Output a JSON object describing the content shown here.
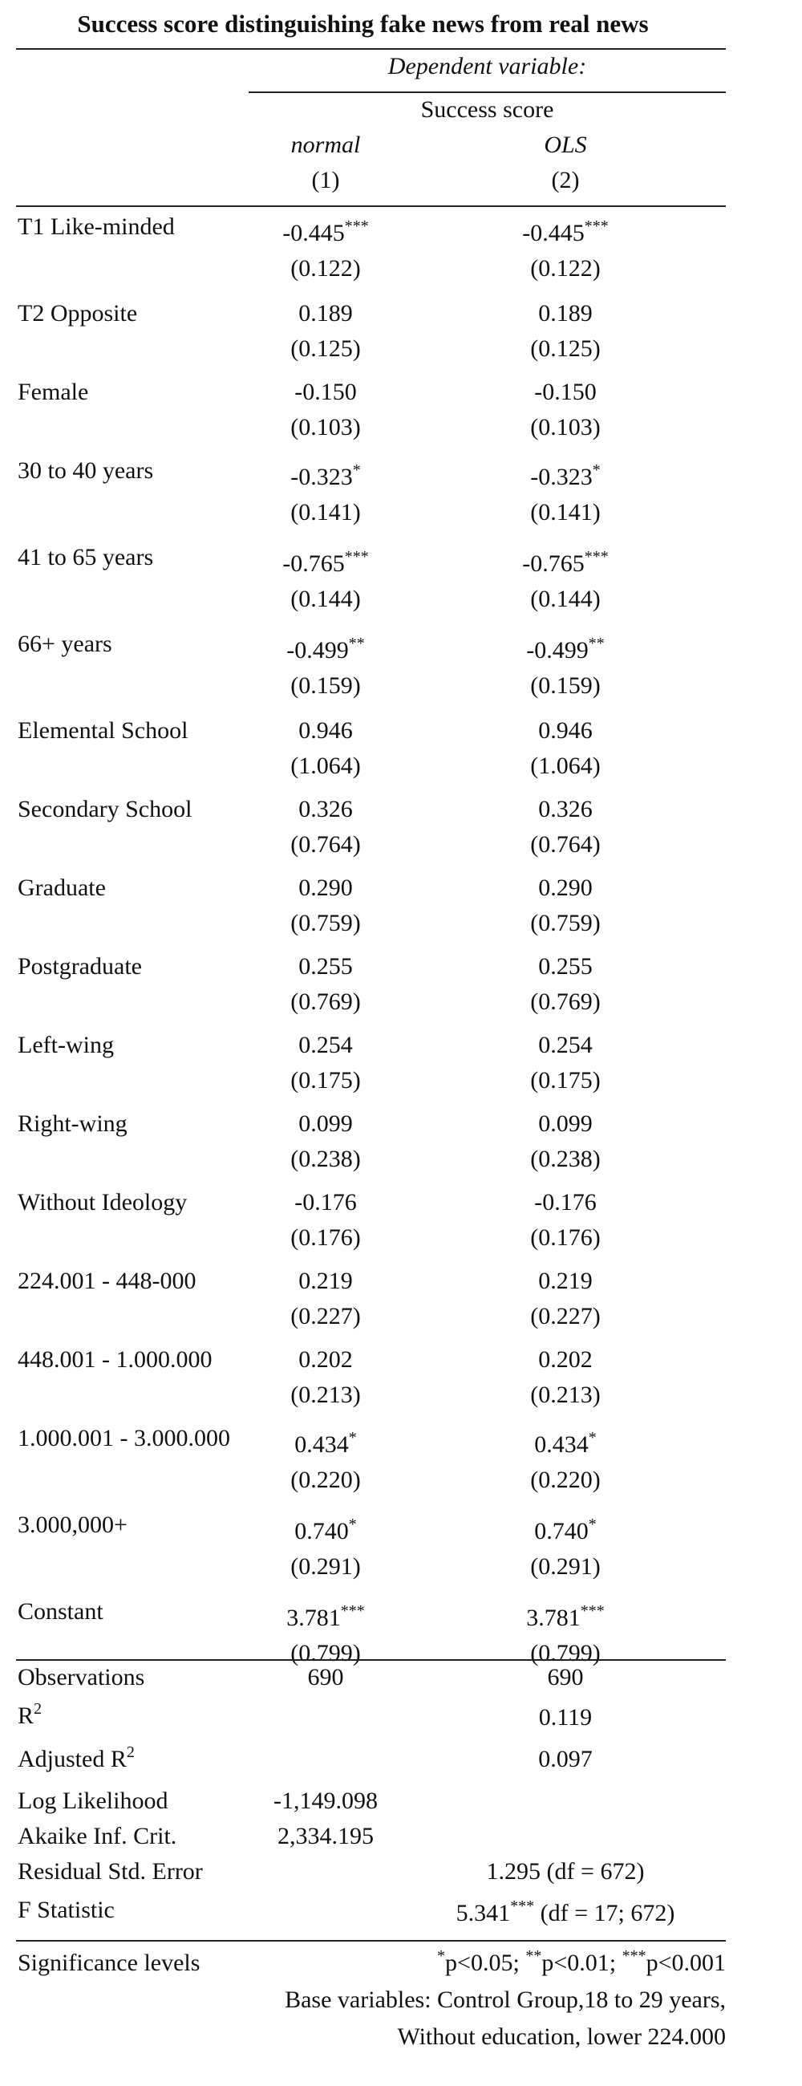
{
  "title": "Success score distinguishing fake news from real news",
  "header": {
    "dependent_label": "Dependent variable:",
    "dependent_name": "Success score",
    "models": [
      {
        "type": "normal",
        "number": "(1)"
      },
      {
        "type": "OLS",
        "number": "(2)"
      }
    ]
  },
  "rows": [
    {
      "label": "T1 Like-minded",
      "m1": "-0.445",
      "m1_sig": "***",
      "m1_se": "(0.122)",
      "m2": "-0.445",
      "m2_sig": "***",
      "m2_se": "(0.122)"
    },
    {
      "label": "T2 Opposite",
      "m1": "0.189",
      "m1_sig": "",
      "m1_se": "(0.125)",
      "m2": "0.189",
      "m2_sig": "",
      "m2_se": "(0.125)"
    },
    {
      "label": "Female",
      "m1": "-0.150",
      "m1_sig": "",
      "m1_se": "(0.103)",
      "m2": "-0.150",
      "m2_sig": "",
      "m2_se": "(0.103)"
    },
    {
      "label": "30 to 40 years",
      "m1": "-0.323",
      "m1_sig": "*",
      "m1_se": "(0.141)",
      "m2": "-0.323",
      "m2_sig": "*",
      "m2_se": "(0.141)"
    },
    {
      "label": "41 to 65 years",
      "m1": "-0.765",
      "m1_sig": "***",
      "m1_se": "(0.144)",
      "m2": "-0.765",
      "m2_sig": "***",
      "m2_se": "(0.144)"
    },
    {
      "label": "66+ years",
      "m1": "-0.499",
      "m1_sig": "**",
      "m1_se": "(0.159)",
      "m2": "-0.499",
      "m2_sig": "**",
      "m2_se": "(0.159)"
    },
    {
      "label": "Elemental School",
      "m1": "0.946",
      "m1_sig": "",
      "m1_se": "(1.064)",
      "m2": "0.946",
      "m2_sig": "",
      "m2_se": "(1.064)"
    },
    {
      "label": "Secondary School",
      "m1": "0.326",
      "m1_sig": "",
      "m1_se": "(0.764)",
      "m2": "0.326",
      "m2_sig": "",
      "m2_se": "(0.764)"
    },
    {
      "label": "Graduate",
      "m1": "0.290",
      "m1_sig": "",
      "m1_se": "(0.759)",
      "m2": "0.290",
      "m2_sig": "",
      "m2_se": "(0.759)"
    },
    {
      "label": "Postgraduate",
      "m1": "0.255",
      "m1_sig": "",
      "m1_se": "(0.769)",
      "m2": "0.255",
      "m2_sig": "",
      "m2_se": "(0.769)"
    },
    {
      "label": "Left-wing",
      "m1": "0.254",
      "m1_sig": "",
      "m1_se": "(0.175)",
      "m2": "0.254",
      "m2_sig": "",
      "m2_se": "(0.175)"
    },
    {
      "label": "Right-wing",
      "m1": "0.099",
      "m1_sig": "",
      "m1_se": "(0.238)",
      "m2": "0.099",
      "m2_sig": "",
      "m2_se": "(0.238)"
    },
    {
      "label": "Without Ideology",
      "m1": "-0.176",
      "m1_sig": "",
      "m1_se": "(0.176)",
      "m2": "-0.176",
      "m2_sig": "",
      "m2_se": "(0.176)"
    },
    {
      "label": "224.001 - 448-000",
      "m1": "0.219",
      "m1_sig": "",
      "m1_se": "(0.227)",
      "m2": "0.219",
      "m2_sig": "",
      "m2_se": "(0.227)"
    },
    {
      "label": "448.001 - 1.000.000",
      "m1": "0.202",
      "m1_sig": "",
      "m1_se": "(0.213)",
      "m2": "0.202",
      "m2_sig": "",
      "m2_se": "(0.213)"
    },
    {
      "label": "1.000.001 - 3.000.000",
      "m1": "0.434",
      "m1_sig": "*",
      "m1_se": "(0.220)",
      "m2": "0.434",
      "m2_sig": "*",
      "m2_se": "(0.220)"
    },
    {
      "label": "3.000,000+",
      "m1": "0.740",
      "m1_sig": "*",
      "m1_se": "(0.291)",
      "m2": "0.740",
      "m2_sig": "*",
      "m2_se": "(0.291)"
    },
    {
      "label": "Constant",
      "m1": "3.781",
      "m1_sig": "***",
      "m1_se": "(0.799)",
      "m2": "3.781",
      "m2_sig": "***",
      "m2_se": "(0.799)"
    }
  ],
  "stats": {
    "observations": {
      "label": "Observations",
      "m1": "690",
      "m2": "690"
    },
    "r2": {
      "label": "R",
      "sup": "2",
      "m2": "0.119"
    },
    "adj_r2": {
      "label": "Adjusted R",
      "sup": "2",
      "m2": "0.097"
    },
    "log_likelihood": {
      "label": "Log Likelihood",
      "m1": "-1,149.098"
    },
    "aic": {
      "label": "Akaike Inf. Crit.",
      "m1": "2,334.195"
    },
    "rse": {
      "label": "Residual Std. Error",
      "value": "1.295 (df = 672)"
    },
    "fstat": {
      "label": "F Statistic",
      "value": "5.341",
      "sig": "***",
      "df": " (df = 17; 672)"
    }
  },
  "notes": {
    "label": "Significance levels",
    "sig1_mark": "*",
    "sig1_text": "p<0.05; ",
    "sig2_mark": "**",
    "sig2_text": "p<0.01; ",
    "sig3_mark": "***",
    "sig3_text": "p<0.001",
    "line2": "Base variables: Control Group,18 to 29 years,",
    "line3": "Without education, lower 224.000"
  }
}
